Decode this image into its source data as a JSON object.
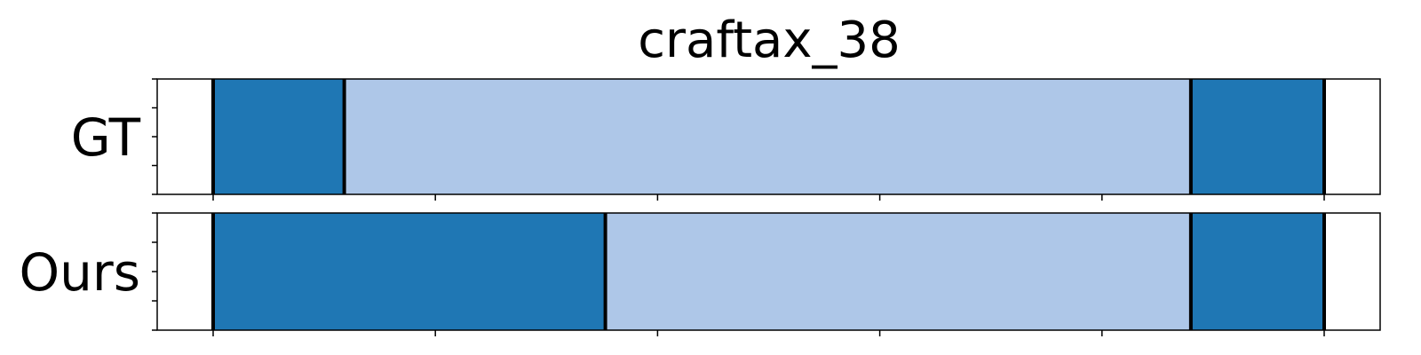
{
  "chart_data": {
    "type": "bar",
    "title": "craftax_38",
    "xlim": [
      0,
      1
    ],
    "x_ticks": [
      0.05,
      0.25,
      0.45,
      0.65,
      0.85,
      1.05
    ],
    "colors": {
      "dark": "#1f77b4",
      "light": "#aec7e8",
      "boundary": "#000000",
      "background": "#ffffff"
    },
    "rows": [
      {
        "label": "GT",
        "segments": [
          {
            "start": 0.05,
            "end": 0.168,
            "color": "dark"
          },
          {
            "start": 0.168,
            "end": 0.93,
            "color": "light"
          },
          {
            "start": 0.93,
            "end": 1.05,
            "color": "dark"
          }
        ]
      },
      {
        "label": "Ours",
        "segments": [
          {
            "start": 0.05,
            "end": 0.403,
            "color": "dark"
          },
          {
            "start": 0.403,
            "end": 0.93,
            "color": "light"
          },
          {
            "start": 0.93,
            "end": 1.05,
            "color": "dark"
          }
        ]
      }
    ]
  }
}
